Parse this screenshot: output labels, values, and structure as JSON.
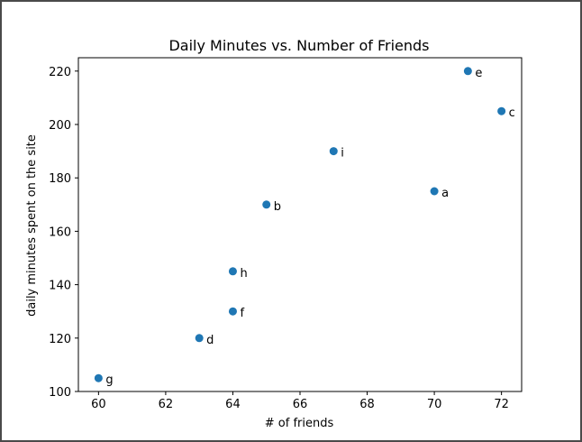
{
  "chart_data": {
    "type": "scatter",
    "title": "Daily Minutes vs. Number of Friends",
    "xlabel": "# of friends",
    "ylabel": "daily minutes spent on the site",
    "xlim": [
      59.4,
      72.6
    ],
    "ylim": [
      100,
      225
    ],
    "xticks": [
      60,
      62,
      64,
      66,
      68,
      70,
      72
    ],
    "yticks": [
      100,
      120,
      140,
      160,
      180,
      200,
      220
    ],
    "grid": false,
    "marker_color": "#1f77b4",
    "points": [
      {
        "label": "a",
        "x": 70,
        "y": 175
      },
      {
        "label": "b",
        "x": 65,
        "y": 170
      },
      {
        "label": "c",
        "x": 72,
        "y": 205
      },
      {
        "label": "d",
        "x": 63,
        "y": 120
      },
      {
        "label": "e",
        "x": 71,
        "y": 220
      },
      {
        "label": "f",
        "x": 64,
        "y": 130
      },
      {
        "label": "g",
        "x": 60,
        "y": 105
      },
      {
        "label": "h",
        "x": 64,
        "y": 145
      },
      {
        "label": "i",
        "x": 67,
        "y": 190
      }
    ]
  }
}
